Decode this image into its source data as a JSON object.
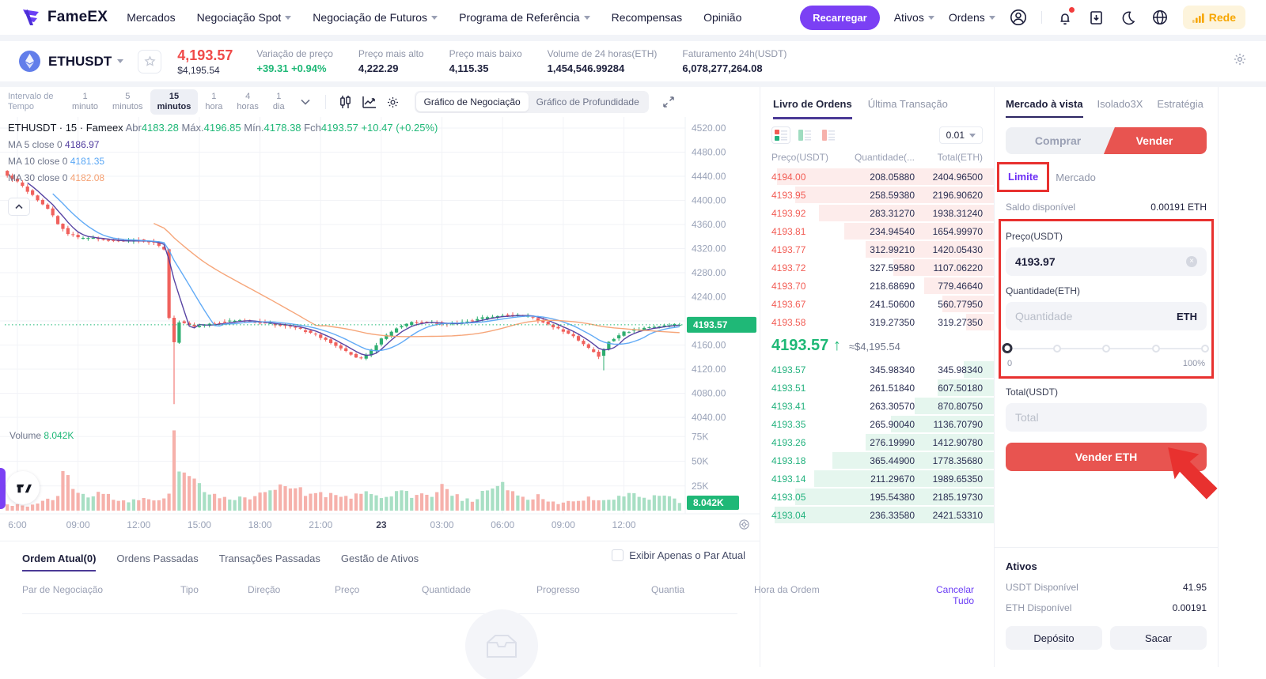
{
  "nav": {
    "brand": "FameEX",
    "links": [
      {
        "label": "Mercados",
        "caret": false
      },
      {
        "label": "Negociação Spot",
        "caret": true
      },
      {
        "label": "Negociação de Futuros",
        "caret": true
      },
      {
        "label": "Programa de Referência",
        "caret": true
      },
      {
        "label": "Recompensas",
        "caret": false
      },
      {
        "label": "Opinião",
        "caret": false
      }
    ],
    "recharge": "Recarregar",
    "menus": [
      {
        "label": "Ativos"
      },
      {
        "label": "Ordens"
      }
    ],
    "network": "Rede"
  },
  "ticker": {
    "pair": "ETHUSDT",
    "price": "4,193.57",
    "price_usd": "$4,195.54",
    "stats": [
      {
        "label": "Variação de preço",
        "value": "+39.31 +0.94%",
        "up": true
      },
      {
        "label": "Preço mais alto",
        "value": "4,222.29",
        "up": false
      },
      {
        "label": "Preço mais baixo",
        "value": "4,115.35",
        "up": false
      },
      {
        "label": "Volume de 24 horas(ETH)",
        "value": "1,454,546.99284",
        "up": false
      },
      {
        "label": "Faturamento 24h(USDT)",
        "value": "6,078,277,264.08",
        "up": false
      }
    ]
  },
  "toolbar": {
    "interval_label": "Intervalo de Tempo",
    "intervals": [
      {
        "num": "1",
        "unit": "minuto",
        "active": false
      },
      {
        "num": "5",
        "unit": "minutos",
        "active": false
      },
      {
        "num": "15",
        "unit": "minutos",
        "active": true
      },
      {
        "num": "1",
        "unit": "hora",
        "active": false
      },
      {
        "num": "4",
        "unit": "horas",
        "active": false
      },
      {
        "num": "1",
        "unit": "dia",
        "active": false
      }
    ],
    "chart_tabs": [
      {
        "label": "Gráfico de Negociação",
        "active": true
      },
      {
        "label": "Gráfico de Profundidade",
        "active": false
      }
    ]
  },
  "chart": {
    "legend": {
      "symbol": "ETHUSDT · 15 · Fameex",
      "o_label": "Abr",
      "o": "4183.28",
      "h_label": "Máx.",
      "h": "4196.85",
      "l_label": "Mín.",
      "l": "4178.38",
      "c_label": "Fch",
      "c": "4193.57",
      "change": "+10.47 (+0.25%)"
    },
    "ma_rows": [
      {
        "label": "MA 5 close 0",
        "value": "4186.97",
        "color": "#4f3a9e"
      },
      {
        "label": "MA 10 close 0",
        "value": "4181.35",
        "color": "#5aa7f5"
      },
      {
        "label": "MA 30 close 0",
        "value": "4182.08",
        "color": "#f5a173"
      }
    ],
    "price_axis": [
      "4520.00",
      "4480.00",
      "4440.00",
      "4400.00",
      "4360.00",
      "4320.00",
      "4280.00",
      "4240.00",
      "4200.00",
      "4160.00",
      "4120.00",
      "4080.00",
      "4040.00"
    ],
    "y_max": 4520,
    "y_min": 4040,
    "price_tag": "4193.57",
    "current_price": 4193.57,
    "vol_title": "Volume",
    "vol_value": "8.042K",
    "vol_axis": [
      "75K",
      "50K",
      "25K"
    ],
    "vol_tag": "8.042K",
    "vol_max": 80,
    "time_axis": [
      "6:00",
      "09:00",
      "12:00",
      "15:00",
      "18:00",
      "21:00",
      "23",
      "03:00",
      "06:00",
      "09:00",
      "12:00"
    ],
    "n_candles": 134,
    "price_path": [
      [
        0,
        4448
      ],
      [
        3,
        4430
      ],
      [
        6,
        4408
      ],
      [
        9,
        4386
      ],
      [
        11,
        4362
      ],
      [
        13,
        4345
      ],
      [
        15,
        4338
      ],
      [
        19,
        4336
      ],
      [
        23,
        4332
      ],
      [
        27,
        4334
      ],
      [
        30,
        4330
      ],
      [
        32,
        4318
      ],
      [
        33,
        4205
      ],
      [
        34,
        4165
      ],
      [
        35,
        4198
      ],
      [
        38,
        4190
      ],
      [
        42,
        4196
      ],
      [
        46,
        4201
      ],
      [
        50,
        4198
      ],
      [
        54,
        4194
      ],
      [
        58,
        4189
      ],
      [
        62,
        4177
      ],
      [
        66,
        4159
      ],
      [
        69,
        4144
      ],
      [
        71,
        4137
      ],
      [
        73,
        4151
      ],
      [
        75,
        4170
      ],
      [
        78,
        4188
      ],
      [
        81,
        4197
      ],
      [
        84,
        4199
      ],
      [
        88,
        4194
      ],
      [
        92,
        4200
      ],
      [
        96,
        4206
      ],
      [
        100,
        4210
      ],
      [
        104,
        4208
      ],
      [
        107,
        4198
      ],
      [
        110,
        4187
      ],
      [
        113,
        4174
      ],
      [
        116,
        4154
      ],
      [
        118,
        4141
      ],
      [
        120,
        4166
      ],
      [
        123,
        4181
      ],
      [
        126,
        4186
      ],
      [
        129,
        4190
      ],
      [
        133,
        4194
      ]
    ],
    "long_wicks": {
      "33": 4062,
      "118": 4118
    },
    "vol_path": [
      [
        0,
        6
      ],
      [
        4,
        5
      ],
      [
        7,
        9
      ],
      [
        10,
        13
      ],
      [
        11,
        50
      ],
      [
        12,
        33
      ],
      [
        13,
        23
      ],
      [
        15,
        17
      ],
      [
        17,
        13
      ],
      [
        19,
        21
      ],
      [
        21,
        11
      ],
      [
        24,
        9
      ],
      [
        27,
        11
      ],
      [
        30,
        13
      ],
      [
        32,
        15
      ],
      [
        33,
        76
      ],
      [
        34,
        48
      ],
      [
        35,
        37
      ],
      [
        36,
        30
      ],
      [
        38,
        27
      ],
      [
        40,
        19
      ],
      [
        42,
        14
      ],
      [
        44,
        12
      ],
      [
        47,
        13
      ],
      [
        50,
        16
      ],
      [
        52,
        22
      ],
      [
        54,
        25
      ],
      [
        56,
        23
      ],
      [
        58,
        20
      ],
      [
        60,
        17
      ],
      [
        63,
        15
      ],
      [
        66,
        17
      ],
      [
        68,
        15
      ],
      [
        70,
        19
      ],
      [
        72,
        16
      ],
      [
        74,
        13
      ],
      [
        76,
        17
      ],
      [
        78,
        21
      ],
      [
        80,
        13
      ],
      [
        82,
        16
      ],
      [
        84,
        14
      ],
      [
        86,
        26
      ],
      [
        88,
        18
      ],
      [
        90,
        12
      ],
      [
        92,
        10
      ],
      [
        94,
        17
      ],
      [
        96,
        24
      ],
      [
        97,
        27
      ],
      [
        99,
        25
      ],
      [
        101,
        14
      ],
      [
        103,
        12
      ],
      [
        105,
        15
      ],
      [
        107,
        10
      ],
      [
        109,
        8
      ],
      [
        111,
        9
      ],
      [
        113,
        10
      ],
      [
        115,
        12
      ],
      [
        117,
        13
      ],
      [
        119,
        12
      ],
      [
        121,
        14
      ],
      [
        123,
        19
      ],
      [
        125,
        17
      ],
      [
        127,
        13
      ],
      [
        129,
        13
      ],
      [
        131,
        14
      ],
      [
        133,
        9
      ]
    ]
  },
  "orderbook": {
    "tabs": [
      {
        "label": "Livro de Ordens",
        "active": true
      },
      {
        "label": "Última Transação",
        "active": false
      }
    ],
    "precision": "0.01",
    "headers": [
      "Preço(USDT)",
      "Quantidade(...",
      "Total(ETH)"
    ],
    "asks": [
      {
        "p": "4194.00",
        "q": "208.05880",
        "t": "2404.96500",
        "d": 93
      },
      {
        "p": "4193.95",
        "q": "258.59380",
        "t": "2196.90620",
        "d": 85
      },
      {
        "p": "4193.92",
        "q": "283.31270",
        "t": "1938.31240",
        "d": 75
      },
      {
        "p": "4193.81",
        "q": "234.94540",
        "t": "1654.99970",
        "d": 64
      },
      {
        "p": "4193.77",
        "q": "312.99210",
        "t": "1420.05430",
        "d": 55
      },
      {
        "p": "4193.72",
        "q": "327.59580",
        "t": "1107.06220",
        "d": 43
      },
      {
        "p": "4193.70",
        "q": "218.68690",
        "t": "779.46640",
        "d": 30
      },
      {
        "p": "4193.67",
        "q": "241.50600",
        "t": "560.77950",
        "d": 22
      },
      {
        "p": "4193.58",
        "q": "319.27350",
        "t": "319.27350",
        "d": 12
      }
    ],
    "last": {
      "price": "4193.57",
      "arrow": "↑",
      "approx": "≈$4,195.54"
    },
    "bids": [
      {
        "p": "4193.57",
        "q": "345.98340",
        "t": "345.98340",
        "d": 13
      },
      {
        "p": "4193.51",
        "q": "261.51840",
        "t": "607.50180",
        "d": 24
      },
      {
        "p": "4193.41",
        "q": "263.30570",
        "t": "870.80750",
        "d": 34
      },
      {
        "p": "4193.35",
        "q": "265.90040",
        "t": "1136.70790",
        "d": 44
      },
      {
        "p": "4193.26",
        "q": "276.19990",
        "t": "1412.90780",
        "d": 55
      },
      {
        "p": "4193.18",
        "q": "365.44900",
        "t": "1778.35680",
        "d": 69
      },
      {
        "p": "4193.14",
        "q": "211.29670",
        "t": "1989.65350",
        "d": 77
      },
      {
        "p": "4193.05",
        "q": "195.54380",
        "t": "2185.19730",
        "d": 85
      },
      {
        "p": "4193.04",
        "q": "236.33580",
        "t": "2421.53310",
        "d": 94
      }
    ]
  },
  "trade": {
    "tabs": [
      {
        "label": "Mercado à vista",
        "active": true
      },
      {
        "label": "Isolado3X",
        "active": false
      },
      {
        "label": "Estratégia",
        "active": false
      }
    ],
    "buy": "Comprar",
    "sell": "Vender",
    "types": [
      {
        "label": "Limite",
        "active": true
      },
      {
        "label": "Mercado",
        "active": false
      }
    ],
    "balance_label": "Saldo disponível",
    "balance_value": "0.00191 ETH",
    "price_label": "Preço(USDT)",
    "price_value": "4193.97",
    "qty_label": "Quantidade(ETH)",
    "qty_placeholder": "Quantidade",
    "qty_unit": "ETH",
    "slider_min": "0",
    "slider_max": "100%",
    "total_label": "Total(USDT)",
    "total_placeholder": "Total",
    "submit": "Vender ETH",
    "assets": {
      "title": "Ativos",
      "rows": [
        {
          "label": "USDT Disponível",
          "value": "41.95"
        },
        {
          "label": "ETH Disponível",
          "value": "0.00191"
        }
      ],
      "deposit": "Depósito",
      "withdraw": "Sacar"
    }
  },
  "orders": {
    "tabs": [
      {
        "label": "Ordem Atual(0)",
        "active": true
      },
      {
        "label": "Ordens Passadas",
        "active": false
      },
      {
        "label": "Transações Passadas",
        "active": false
      },
      {
        "label": "Gestão de Ativos",
        "active": false
      }
    ],
    "filter_label": "Exibir Apenas o Par Atual",
    "headers": [
      "Par de Negociação",
      "Tipo",
      "Direção",
      "Preço",
      "Quantidade",
      "Progresso",
      "Quantia",
      "Hora da Ordem"
    ],
    "cancel_all": "Cancelar Tudo"
  },
  "palette": {
    "up": "#1fb877",
    "down": "#f0544f",
    "candle_up": "#2fae71",
    "candle_down": "#f0615d",
    "vol_up": "#a8dfc4",
    "vol_down": "#f6b1ab",
    "ma5": "#4f3a9e",
    "ma10": "#5aa7f5",
    "ma30": "#f5a173",
    "accent": "#6b3df5",
    "annotation": "#e8312f",
    "tag": "#1fb877"
  }
}
